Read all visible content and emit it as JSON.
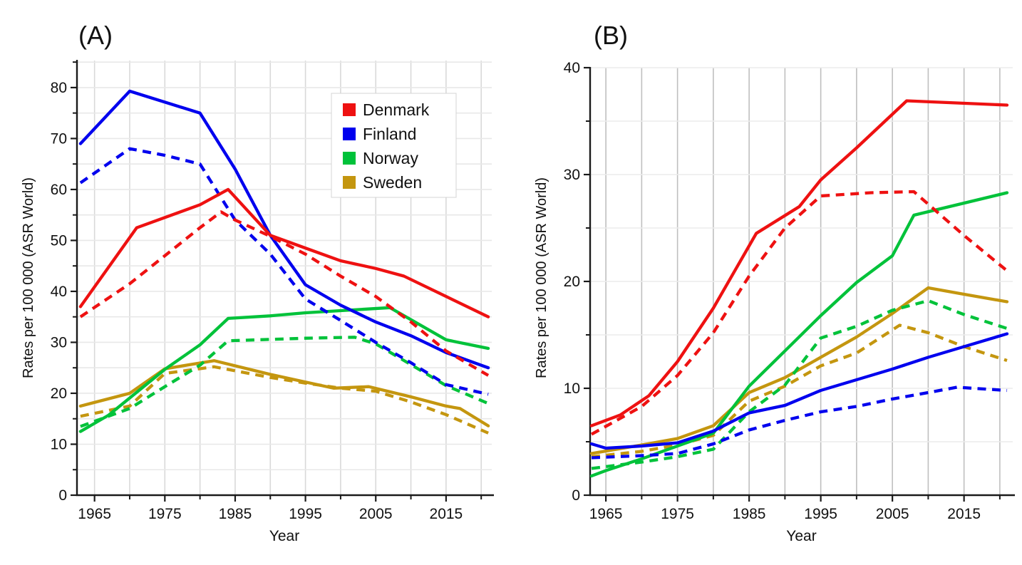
{
  "figure": {
    "background": "#ffffff",
    "text_color": "#111111",
    "axis_color": "#1a1a1a"
  },
  "legend": {
    "entries": [
      {
        "label": "Denmark",
        "color": "#ee1111"
      },
      {
        "label": "Finland",
        "color": "#0000ee"
      },
      {
        "label": "Norway",
        "color": "#00c23a"
      },
      {
        "label": "Sweden",
        "color": "#c4960f"
      }
    ]
  },
  "chart_data": [
    {
      "type": "line",
      "panel_label": "(A)",
      "xlabel": "Year",
      "ylabel": "Rates per 100 000 (ASR World)",
      "xlim": [
        1962.5,
        2021.5
      ],
      "ylim": [
        0,
        85.3
      ],
      "grid": {
        "vcolor": "#d9d9d9",
        "hcolor": "#e8e8e8",
        "step_x": 5,
        "step_y": 5
      },
      "x_ticks": {
        "major": [
          {
            "value": 1965,
            "label": "1965"
          },
          {
            "value": 1975,
            "label": "1975"
          },
          {
            "value": 1985,
            "label": "1985"
          },
          {
            "value": 1995,
            "label": "1995"
          },
          {
            "value": 2005,
            "label": "2005"
          },
          {
            "value": 2015,
            "label": "2015"
          }
        ],
        "minor": [
          1970,
          1980,
          1990,
          2000,
          2010,
          2020
        ]
      },
      "y_ticks": {
        "major": [
          {
            "value": 0,
            "label": "0"
          },
          {
            "value": 10,
            "label": "10"
          },
          {
            "value": 20,
            "label": "20"
          },
          {
            "value": 30,
            "label": "30"
          },
          {
            "value": 40,
            "label": "40"
          },
          {
            "value": 50,
            "label": "50"
          },
          {
            "value": 60,
            "label": "60"
          },
          {
            "value": 70,
            "label": "70"
          },
          {
            "value": 80,
            "label": "80"
          }
        ],
        "minor": [
          5,
          15,
          25,
          35,
          45,
          55,
          65,
          75,
          85
        ]
      },
      "legend_visible": true,
      "series": [
        {
          "name": "denmark-solid",
          "country": "Denmark",
          "style": "solid",
          "color": "#ee1111",
          "points": [
            [
              1963,
              37
            ],
            [
              1971,
              52.5
            ],
            [
              1980,
              57
            ],
            [
              1984,
              60
            ],
            [
              1990,
              51
            ],
            [
              1995,
              48.5
            ],
            [
              2000,
              46
            ],
            [
              2005,
              44.5
            ],
            [
              2009,
              43
            ],
            [
              2015,
              39
            ],
            [
              2021,
              35
            ]
          ]
        },
        {
          "name": "denmark-dashed",
          "country": "Denmark",
          "style": "dashed",
          "color": "#ee1111",
          "points": [
            [
              1963,
              35
            ],
            [
              1970,
              41.5
            ],
            [
              1975,
              47
            ],
            [
              1980,
              52.5
            ],
            [
              1983,
              55.6
            ],
            [
              1985,
              54
            ],
            [
              1990,
              50.8
            ],
            [
              1995,
              47.3
            ],
            [
              2000,
              43
            ],
            [
              2005,
              39
            ],
            [
              2010,
              34
            ],
            [
              2015,
              28.3
            ],
            [
              2021,
              23.5
            ]
          ]
        },
        {
          "name": "finland-solid",
          "country": "Finland",
          "style": "solid",
          "color": "#0000ee",
          "points": [
            [
              1963,
              69
            ],
            [
              1970,
              79.3
            ],
            [
              1980,
              75
            ],
            [
              1985,
              64
            ],
            [
              1990,
              51
            ],
            [
              1995,
              41.3
            ],
            [
              2000,
              37.3
            ],
            [
              2005,
              34
            ],
            [
              2010,
              31.3
            ],
            [
              2015,
              28
            ],
            [
              2021,
              25
            ]
          ]
        },
        {
          "name": "finland-dashed",
          "country": "Finland",
          "style": "dashed",
          "color": "#0000ee",
          "points": [
            [
              1963,
              61.3
            ],
            [
              1970,
              68
            ],
            [
              1975,
              66.7
            ],
            [
              1980,
              65
            ],
            [
              1985,
              54
            ],
            [
              1990,
              47.3
            ],
            [
              1995,
              38.5
            ],
            [
              2000,
              34.3
            ],
            [
              2005,
              30
            ],
            [
              2010,
              26
            ],
            [
              2015,
              21.7
            ],
            [
              2021,
              19.8
            ]
          ]
        },
        {
          "name": "norway-solid",
          "country": "Norway",
          "style": "solid",
          "color": "#00c23a",
          "points": [
            [
              1963,
              12.5
            ],
            [
              1967,
              15.7
            ],
            [
              1975,
              24.7
            ],
            [
              1980,
              29.5
            ],
            [
              1984,
              34.7
            ],
            [
              1990,
              35.2
            ],
            [
              1995,
              35.8
            ],
            [
              2007,
              36.8
            ],
            [
              2015,
              30.5
            ],
            [
              2021,
              28.8
            ]
          ]
        },
        {
          "name": "norway-dashed",
          "country": "Norway",
          "style": "dashed",
          "color": "#00c23a",
          "points": [
            [
              1963,
              13.5
            ],
            [
              1970,
              17
            ],
            [
              1975,
              21.3
            ],
            [
              1980,
              25.5
            ],
            [
              1984,
              30.3
            ],
            [
              1995,
              30.8
            ],
            [
              2002,
              31
            ],
            [
              2005,
              29.7
            ],
            [
              2012,
              24
            ],
            [
              2015,
              21.5
            ],
            [
              2021,
              18
            ]
          ]
        },
        {
          "name": "sweden-solid",
          "country": "Sweden",
          "style": "solid",
          "color": "#c4960f",
          "points": [
            [
              1963,
              17.5
            ],
            [
              1970,
              20
            ],
            [
              1975,
              24.8
            ],
            [
              1982,
              26.4
            ],
            [
              1990,
              23.7
            ],
            [
              1999,
              21
            ],
            [
              2004,
              21.3
            ],
            [
              2010,
              19.3
            ],
            [
              2015,
              17.5
            ],
            [
              2017,
              17
            ],
            [
              2021,
              13.6
            ]
          ]
        },
        {
          "name": "sweden-dashed",
          "country": "Sweden",
          "style": "dashed",
          "color": "#c4960f",
          "points": [
            [
              1963,
              15.5
            ],
            [
              1970,
              17.5
            ],
            [
              1975,
              23.9
            ],
            [
              1982,
              25.2
            ],
            [
              1990,
              23.1
            ],
            [
              1995,
              22
            ],
            [
              2000,
              21
            ],
            [
              2005,
              20.4
            ],
            [
              2010,
              18.3
            ],
            [
              2015,
              15.8
            ],
            [
              2021,
              12.2
            ]
          ]
        }
      ]
    },
    {
      "type": "line",
      "panel_label": "(B)",
      "xlabel": "Year",
      "ylabel": "Rates per 100 000 (ASR World)",
      "xlim": [
        1962.8,
        2021.8
      ],
      "ylim": [
        0,
        40
      ],
      "grid": {
        "vcolor": "#bfbfbf",
        "hcolor": "#ececec",
        "step_x": 5,
        "step_y": 5
      },
      "x_ticks": {
        "major": [
          {
            "value": 1965,
            "label": "1965"
          },
          {
            "value": 1975,
            "label": "1975"
          },
          {
            "value": 1985,
            "label": "1985"
          },
          {
            "value": 1995,
            "label": "1995"
          },
          {
            "value": 2005,
            "label": "2005"
          },
          {
            "value": 2015,
            "label": "2015"
          }
        ],
        "minor": [
          1970,
          1980,
          1990,
          2000,
          2010,
          2020
        ]
      },
      "y_ticks": {
        "major": [
          {
            "value": 0,
            "label": "0"
          },
          {
            "value": 10,
            "label": "10"
          },
          {
            "value": 20,
            "label": "20"
          },
          {
            "value": 30,
            "label": "30"
          },
          {
            "value": 40,
            "label": "40"
          }
        ],
        "minor": [
          5,
          15,
          25,
          35
        ]
      },
      "legend_visible": false,
      "series": [
        {
          "name": "denmark-solid",
          "country": "Denmark",
          "style": "solid",
          "color": "#ee1111",
          "points": [
            [
              1963,
              6.5
            ],
            [
              1967,
              7.5
            ],
            [
              1971,
              9.3
            ],
            [
              1975,
              12.5
            ],
            [
              1980,
              17.5
            ],
            [
              1986,
              24.5
            ],
            [
              1992,
              27
            ],
            [
              1995,
              29.5
            ],
            [
              2000,
              32.5
            ],
            [
              2007,
              36.9
            ],
            [
              2014,
              36.7
            ],
            [
              2021,
              36.5
            ]
          ]
        },
        {
          "name": "denmark-dashed",
          "country": "Denmark",
          "style": "dashed",
          "color": "#ee1111",
          "points": [
            [
              1963,
              5.7
            ],
            [
              1970,
              8.3
            ],
            [
              1975,
              11.2
            ],
            [
              1980,
              15.2
            ],
            [
              1985,
              20.5
            ],
            [
              1990,
              25
            ],
            [
              1995,
              28
            ],
            [
              2002,
              28.3
            ],
            [
              2008,
              28.4
            ],
            [
              2015,
              24.3
            ],
            [
              2021,
              21
            ]
          ]
        },
        {
          "name": "finland-solid",
          "country": "Finland",
          "style": "solid",
          "color": "#0000ee",
          "points": [
            [
              1963,
              4.8
            ],
            [
              1965,
              4.4
            ],
            [
              1970,
              4.6
            ],
            [
              1975,
              4.9
            ],
            [
              1980,
              6
            ],
            [
              1985,
              7.7
            ],
            [
              1990,
              8.4
            ],
            [
              1995,
              9.8
            ],
            [
              2000,
              10.8
            ],
            [
              2005,
              11.8
            ],
            [
              2010,
              12.9
            ],
            [
              2015,
              13.9
            ],
            [
              2021,
              15.1
            ]
          ]
        },
        {
          "name": "finland-dashed",
          "country": "Finland",
          "style": "dashed",
          "color": "#0000ee",
          "points": [
            [
              1963,
              3.5
            ],
            [
              1970,
              3.7
            ],
            [
              1975,
              3.9
            ],
            [
              1980,
              4.8
            ],
            [
              1985,
              6.1
            ],
            [
              1990,
              7
            ],
            [
              1995,
              7.8
            ],
            [
              2000,
              8.3
            ],
            [
              2005,
              9
            ],
            [
              2010,
              9.6
            ],
            [
              2014,
              10.1
            ],
            [
              2021,
              9.8
            ]
          ]
        },
        {
          "name": "norway-solid",
          "country": "Norway",
          "style": "solid",
          "color": "#00c23a",
          "points": [
            [
              1963,
              1.8
            ],
            [
              1965,
              2.3
            ],
            [
              1970,
              3.4
            ],
            [
              1975,
              4.6
            ],
            [
              1980,
              5.8
            ],
            [
              1985,
              10.2
            ],
            [
              1990,
              13.5
            ],
            [
              1995,
              16.8
            ],
            [
              2000,
              19.9
            ],
            [
              2005,
              22.4
            ],
            [
              2008,
              26.2
            ],
            [
              2021,
              28.3
            ]
          ]
        },
        {
          "name": "norway-dashed",
          "country": "Norway",
          "style": "dashed",
          "color": "#00c23a",
          "points": [
            [
              1963,
              2.5
            ],
            [
              1970,
              3.1
            ],
            [
              1975,
              3.6
            ],
            [
              1980,
              4.3
            ],
            [
              1985,
              7.8
            ],
            [
              1990,
              10.3
            ],
            [
              1995,
              14.7
            ],
            [
              2000,
              15.8
            ],
            [
              2005,
              17.3
            ],
            [
              2010,
              18.2
            ],
            [
              2015,
              16.9
            ],
            [
              2021,
              15.6
            ]
          ]
        },
        {
          "name": "sweden-solid",
          "country": "Sweden",
          "style": "solid",
          "color": "#c4960f",
          "points": [
            [
              1963,
              3.9
            ],
            [
              1970,
              4.7
            ],
            [
              1975,
              5.3
            ],
            [
              1980,
              6.5
            ],
            [
              1985,
              9.6
            ],
            [
              1990,
              11
            ],
            [
              1995,
              12.9
            ],
            [
              2000,
              14.8
            ],
            [
              2005,
              17
            ],
            [
              2010,
              19.4
            ],
            [
              2015,
              18.8
            ],
            [
              2021,
              18.1
            ]
          ]
        },
        {
          "name": "sweden-dashed",
          "country": "Sweden",
          "style": "dashed",
          "color": "#c4960f",
          "points": [
            [
              1963,
              3.6
            ],
            [
              1970,
              4.1
            ],
            [
              1975,
              4.7
            ],
            [
              1980,
              5.6
            ],
            [
              1985,
              8.8
            ],
            [
              1990,
              10.2
            ],
            [
              1995,
              12.1
            ],
            [
              2000,
              13.3
            ],
            [
              2006,
              15.9
            ],
            [
              2010,
              15.2
            ],
            [
              2015,
              13.9
            ],
            [
              2021,
              12.6
            ]
          ]
        }
      ]
    }
  ]
}
